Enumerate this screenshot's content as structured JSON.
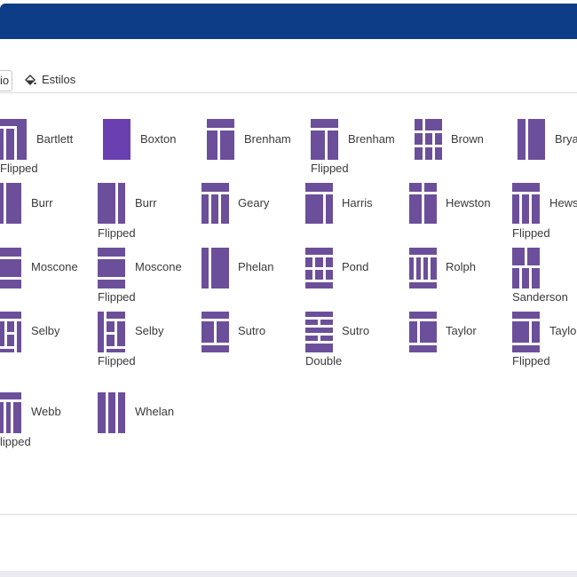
{
  "tabs": {
    "partial_tab_label": "io",
    "styles_tab_label": "Estilos"
  },
  "colors": {
    "header": "#0e3d87",
    "thumb": "#6c4f9a",
    "thumb_selected": "#6a3fb0"
  },
  "layouts": [
    {
      "name": "Bartlett",
      "sub": "Flipped"
    },
    {
      "name": "Boxton",
      "sub": ""
    },
    {
      "name": "Brenham",
      "sub": ""
    },
    {
      "name": "Brenham",
      "sub": "Flipped"
    },
    {
      "name": "Brown",
      "sub": ""
    },
    {
      "name": "Brya",
      "sub": ""
    },
    {
      "name": "Burr",
      "sub": ""
    },
    {
      "name": "Burr",
      "sub": "Flipped"
    },
    {
      "name": "Geary",
      "sub": ""
    },
    {
      "name": "Harris",
      "sub": ""
    },
    {
      "name": "Hewston",
      "sub": ""
    },
    {
      "name": "Hews",
      "sub": "Flipped"
    },
    {
      "name": "Moscone",
      "sub": ""
    },
    {
      "name": "Moscone",
      "sub": "Flipped"
    },
    {
      "name": "Phelan",
      "sub": ""
    },
    {
      "name": "Pond",
      "sub": ""
    },
    {
      "name": "Rolph",
      "sub": ""
    },
    {
      "name": "",
      "sub": "Sanderson"
    },
    {
      "name": "Selby",
      "sub": ""
    },
    {
      "name": "Selby",
      "sub": "Flipped"
    },
    {
      "name": "Sutro",
      "sub": ""
    },
    {
      "name": "Sutro",
      "sub": "Double"
    },
    {
      "name": "Taylor",
      "sub": ""
    },
    {
      "name": "Taylor",
      "sub": "Flipped"
    },
    {
      "name": "Webb",
      "sub": "lipped"
    },
    {
      "name": "Whelan",
      "sub": ""
    }
  ]
}
